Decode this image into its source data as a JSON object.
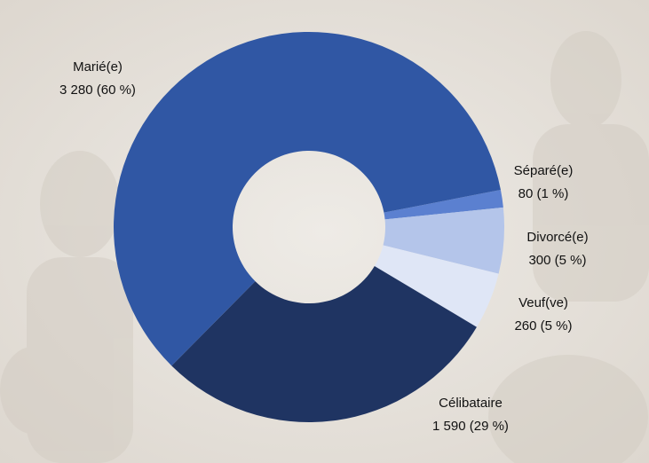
{
  "chart_data": {
    "type": "donut",
    "categories": [
      "Séparé(e)",
      "Divorcé(e)",
      "Veuf(ve)",
      "Célibataire",
      "Marié(e)"
    ],
    "values": [
      80,
      300,
      260,
      1590,
      3280
    ],
    "value_labels": [
      "80 (1 %)",
      "300 (5 %)",
      "260 (5 %)",
      "1 590 (29 %)",
      "3 280 (60 %)"
    ],
    "colors": [
      "#5b80d0",
      "#b4c5ea",
      "#dfe6f6",
      "#1f3462",
      "#3057a4"
    ]
  }
}
